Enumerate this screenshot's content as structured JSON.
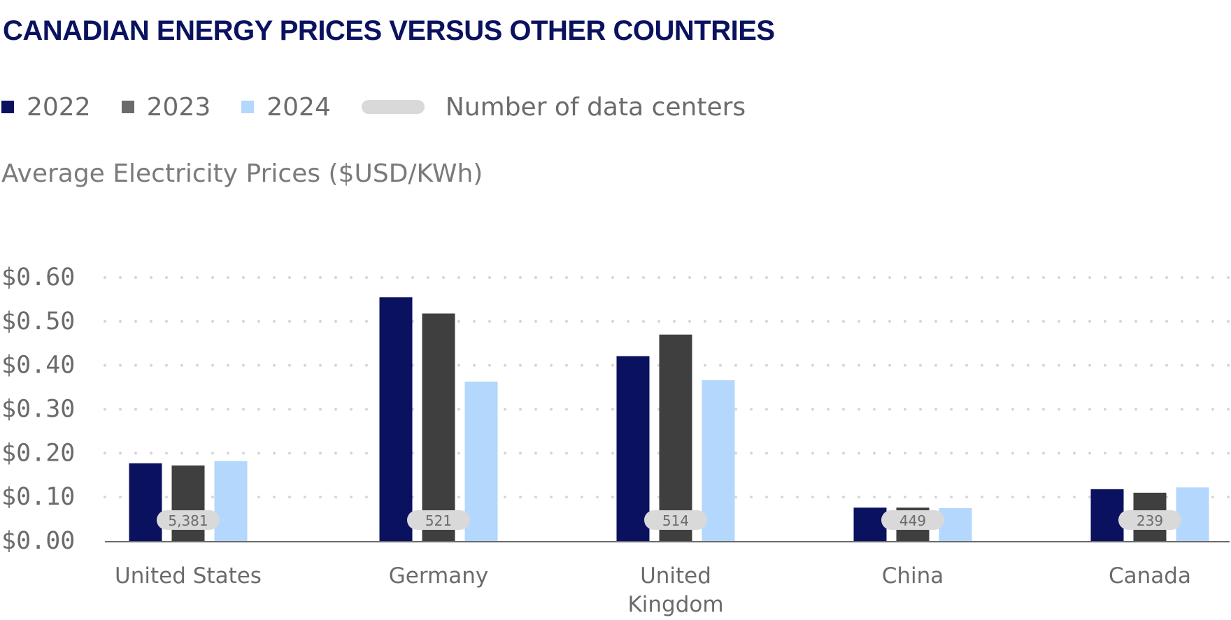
{
  "title": "CANADIAN ENERGY PRICES VERSUS OTHER COUNTRIES",
  "subtitle": "Average Electricity Prices ($USD/KWh)",
  "legend": [
    {
      "label": "2022",
      "color": "#0a1260",
      "kind": "square"
    },
    {
      "label": "2023",
      "color": "#6b6b6b",
      "kind": "square"
    },
    {
      "label": "2024",
      "color": "#b3d7fd",
      "kind": "square"
    },
    {
      "label": "Number of data centers",
      "color": "#d9d9d9",
      "kind": "pill"
    }
  ],
  "chart_data": {
    "type": "bar",
    "title": "CANADIAN ENERGY PRICES VERSUS OTHER COUNTRIES",
    "ylabel": "Average Electricity Prices ($USD/KWh)",
    "ylim": [
      0,
      0.6
    ],
    "yticks": [
      "$0.00",
      "$0.10",
      "$0.20",
      "$0.30",
      "$0.40",
      "$0.50",
      "$0.60"
    ],
    "grid": true,
    "legend_position": "top-left",
    "categories": [
      [
        "United States"
      ],
      [
        "Germany"
      ],
      [
        "United",
        "Kingdom"
      ],
      [
        "China"
      ],
      [
        "Canada"
      ]
    ],
    "series": [
      {
        "name": "2022",
        "color": "#0a1260",
        "values": [
          0.177,
          0.555,
          0.421,
          0.076,
          0.118
        ]
      },
      {
        "name": "2023",
        "color": "#3f3f3f",
        "values": [
          0.172,
          0.518,
          0.47,
          0.076,
          0.11
        ]
      },
      {
        "name": "2024",
        "color": "#b3d7fd",
        "values": [
          0.182,
          0.363,
          0.366,
          0.075,
          0.122
        ]
      }
    ],
    "data_centers": {
      "name": "Number of data centers",
      "labels": [
        "5,381",
        "521",
        "514",
        "449",
        "239"
      ]
    }
  }
}
